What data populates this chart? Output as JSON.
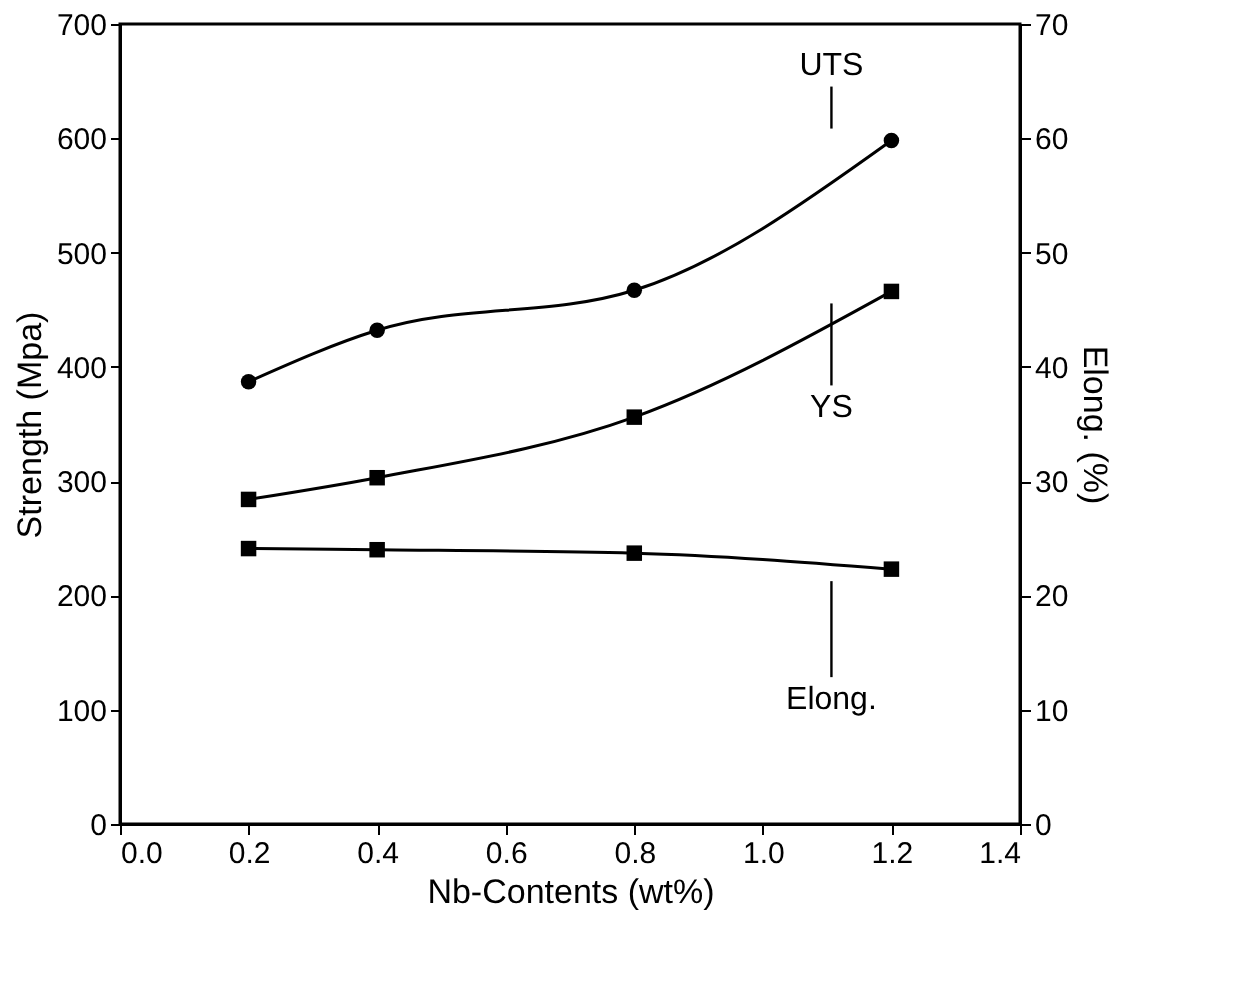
{
  "chart_data": {
    "type": "line",
    "xlabel": "Nb-Contents (wt%)",
    "ylabel": "Strength (Mpa)",
    "y2label": "Elong. (%)",
    "x": [
      0.2,
      0.4,
      0.8,
      1.2
    ],
    "series": [
      {
        "name": "UTS",
        "color": "#000000",
        "marker": "circle",
        "values": [
          387,
          432,
          467,
          598
        ]
      },
      {
        "name": "YS",
        "color": "#000000",
        "marker": "square",
        "values": [
          284,
          303,
          356,
          466
        ]
      },
      {
        "name": "Elong.",
        "color": "#000000",
        "marker": "square",
        "axis": "y2",
        "values": [
          24.1,
          24.0,
          23.7,
          22.3
        ]
      }
    ],
    "xlim": [
      0.0,
      1.4
    ],
    "xticks": [
      {
        "value": 0.0,
        "label": "0.0"
      },
      0.2,
      0.4,
      0.6,
      0.8,
      {
        "value": 1.0,
        "label": "1.0"
      },
      1.2,
      1.4
    ],
    "ylim": [
      0,
      700
    ],
    "yticks": [
      0,
      100,
      200,
      300,
      400,
      500,
      600,
      700
    ],
    "y2lim": [
      0,
      70
    ],
    "y2ticks": [
      0,
      10,
      20,
      30,
      40,
      50,
      60,
      70
    ],
    "line_style": "solid",
    "grid": false
  }
}
